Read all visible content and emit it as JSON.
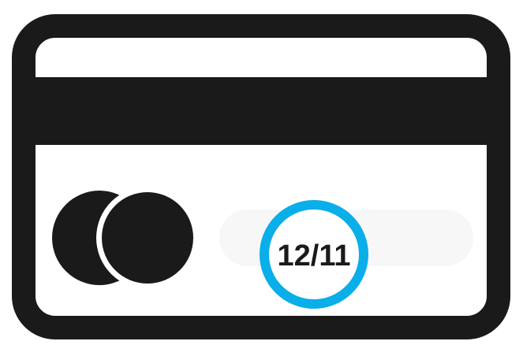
{
  "card": {
    "expiry": "12/11",
    "colors": {
      "outline": "#1a1a1a",
      "stripe": "#1a1a1a",
      "background": "#ffffff",
      "highlight_ring": "#0aaee8",
      "expiry_text": "#1a1a1a",
      "expiry_field": "#f7f7f7"
    },
    "icons": [
      "credit-card-icon",
      "card-logo-circles-icon"
    ]
  }
}
